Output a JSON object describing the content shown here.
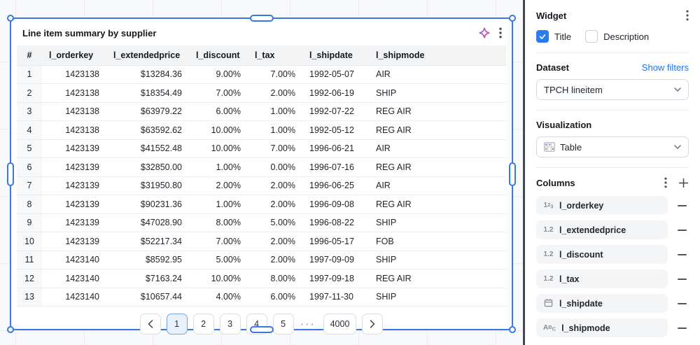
{
  "widget": {
    "title": "Line item summary by supplier",
    "table": {
      "headers": [
        "#",
        "l_orderkey",
        "l_extendedprice",
        "l_discount",
        "l_tax",
        "l_shipdate",
        "l_shipmode"
      ],
      "rows": [
        [
          "1",
          "1423138",
          "$13284.36",
          "9.00%",
          "7.00%",
          "1992-05-07",
          "AIR"
        ],
        [
          "2",
          "1423138",
          "$18354.49",
          "7.00%",
          "2.00%",
          "1992-06-19",
          "SHIP"
        ],
        [
          "3",
          "1423138",
          "$63979.22",
          "6.00%",
          "1.00%",
          "1992-07-22",
          "REG AIR"
        ],
        [
          "4",
          "1423138",
          "$63592.62",
          "10.00%",
          "1.00%",
          "1992-05-12",
          "REG AIR"
        ],
        [
          "5",
          "1423139",
          "$41552.48",
          "10.00%",
          "7.00%",
          "1996-06-21",
          "AIR"
        ],
        [
          "6",
          "1423139",
          "$32850.00",
          "1.00%",
          "0.00%",
          "1996-07-16",
          "REG AIR"
        ],
        [
          "7",
          "1423139",
          "$31950.80",
          "2.00%",
          "2.00%",
          "1996-06-25",
          "AIR"
        ],
        [
          "8",
          "1423139",
          "$90231.36",
          "1.00%",
          "2.00%",
          "1996-09-08",
          "REG AIR"
        ],
        [
          "9",
          "1423139",
          "$47028.90",
          "8.00%",
          "5.00%",
          "1996-08-22",
          "SHIP"
        ],
        [
          "10",
          "1423139",
          "$52217.34",
          "7.00%",
          "2.00%",
          "1996-05-17",
          "FOB"
        ],
        [
          "11",
          "1423140",
          "$8592.95",
          "5.00%",
          "2.00%",
          "1997-09-09",
          "SHIP"
        ],
        [
          "12",
          "1423140",
          "$7163.24",
          "10.00%",
          "8.00%",
          "1997-09-18",
          "REG AIR"
        ],
        [
          "13",
          "1423140",
          "$10657.44",
          "4.00%",
          "6.00%",
          "1997-11-30",
          "SHIP"
        ]
      ]
    },
    "pagination": {
      "pages": [
        "1",
        "2",
        "3",
        "4",
        "5"
      ],
      "active_page": "1",
      "ellipsis": "···",
      "last_page": "4000"
    },
    "icons": [
      "sparkle-ai-icon",
      "kebab-menu-icon"
    ]
  },
  "panel": {
    "widget_section": {
      "title": "Widget",
      "checkboxes": [
        {
          "label": "Title",
          "checked": true
        },
        {
          "label": "Description",
          "checked": false
        }
      ]
    },
    "dataset_section": {
      "title": "Dataset",
      "link_label": "Show filters",
      "selected_value": "TPCH lineitem"
    },
    "visualization_section": {
      "title": "Visualization",
      "selected_value": "Table"
    },
    "columns_section": {
      "title": "Columns",
      "items": [
        {
          "type": "integer",
          "label": "l_orderkey"
        },
        {
          "type": "decimal",
          "label": "l_extendedprice"
        },
        {
          "type": "decimal",
          "label": "l_discount"
        },
        {
          "type": "decimal",
          "label": "l_tax"
        },
        {
          "type": "date",
          "label": "l_shipdate"
        },
        {
          "type": "text",
          "label": "l_shipmode"
        }
      ]
    }
  },
  "colors": {
    "selection_blue": "#3778e3",
    "checkbox_blue": "#2b7bf3",
    "link_blue": "#2173e9",
    "active_page_bg": "#e7f0fb",
    "header_bg": "#f1f3f5",
    "pill_bg": "#f4f5f7",
    "divider_dark": "#3f4a56"
  }
}
